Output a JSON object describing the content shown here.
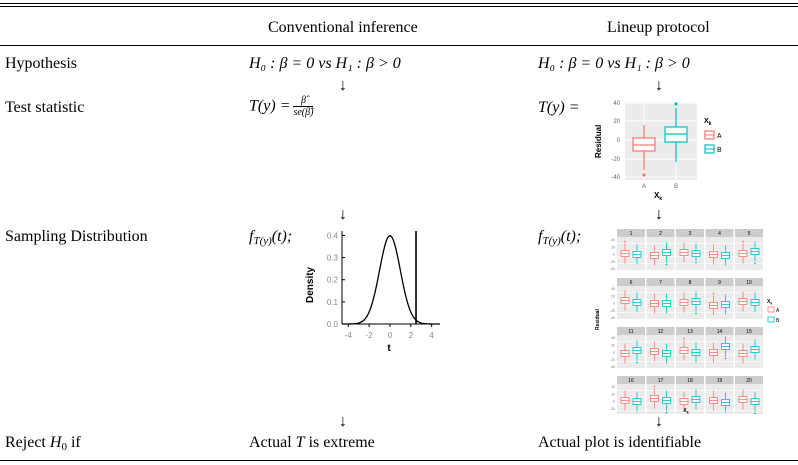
{
  "header": {
    "col1": "Conventional inference",
    "col2": "Lineup protocol"
  },
  "rows": {
    "hypothesis": {
      "label": "Hypothesis",
      "conv": "H₀ : β = 0 vs H₁ : β > 0",
      "lineup": "H₀ : β = 0 vs H₁ : β > 0"
    },
    "test_statistic": {
      "label": "Test statistic",
      "conv_lhs": "T(y) =",
      "conv_num": "β̂",
      "conv_den": "se(β̂)",
      "lineup_lhs": "T(y) ="
    },
    "sampling": {
      "label": "Sampling Distribution",
      "conv_lhs": "f",
      "conv_sub": "T(y)",
      "conv_rhs": "(t);",
      "lineup_lhs": "f",
      "lineup_sub": "T(y)",
      "lineup_rhs": "(t);"
    },
    "reject": {
      "label_prefix": "Reject",
      "label_math": "H",
      "label_sub": "0",
      "label_suffix": "if",
      "conv_prefix": "Actual",
      "conv_math": "T",
      "conv_suffix": "is extreme",
      "lineup": "Actual plot is identifiable"
    }
  },
  "arrow_glyph": "↓",
  "boxplot": {
    "ylabel": "Residual",
    "xlabel": "X",
    "xlabel_sub": "k",
    "legend_title": "X",
    "legend_title_sub": "k",
    "yticks": [
      "40",
      "20",
      "0",
      "-20",
      "-40"
    ],
    "categories": [
      "A",
      "B"
    ],
    "legend": [
      "A",
      "B"
    ],
    "colors": {
      "A": "#f8766d",
      "B": "#00bfc4"
    }
  },
  "density": {
    "ylabel": "Density",
    "xlabel": "t",
    "yticks": [
      "0.4",
      "0.3",
      "0.2",
      "0.1",
      "0.0"
    ],
    "xticks": [
      "-4",
      "-2",
      "0",
      "2",
      "4"
    ],
    "observed_t": 2.5
  },
  "lineup": {
    "panels": [
      "1",
      "2",
      "3",
      "4",
      "5",
      "6",
      "7",
      "8",
      "9",
      "10",
      "11",
      "12",
      "13",
      "14",
      "15",
      "16",
      "17",
      "18",
      "19",
      "20"
    ],
    "ylabel": "Residual",
    "xlabel": "X",
    "xlabel_sub": "k",
    "legend_title": "X",
    "legend_title_sub": "k",
    "legend": [
      "A",
      "B"
    ],
    "yticks": [
      "40",
      "20",
      "0",
      "-20",
      "-40"
    ],
    "xticks": [
      "A",
      "B"
    ]
  }
}
